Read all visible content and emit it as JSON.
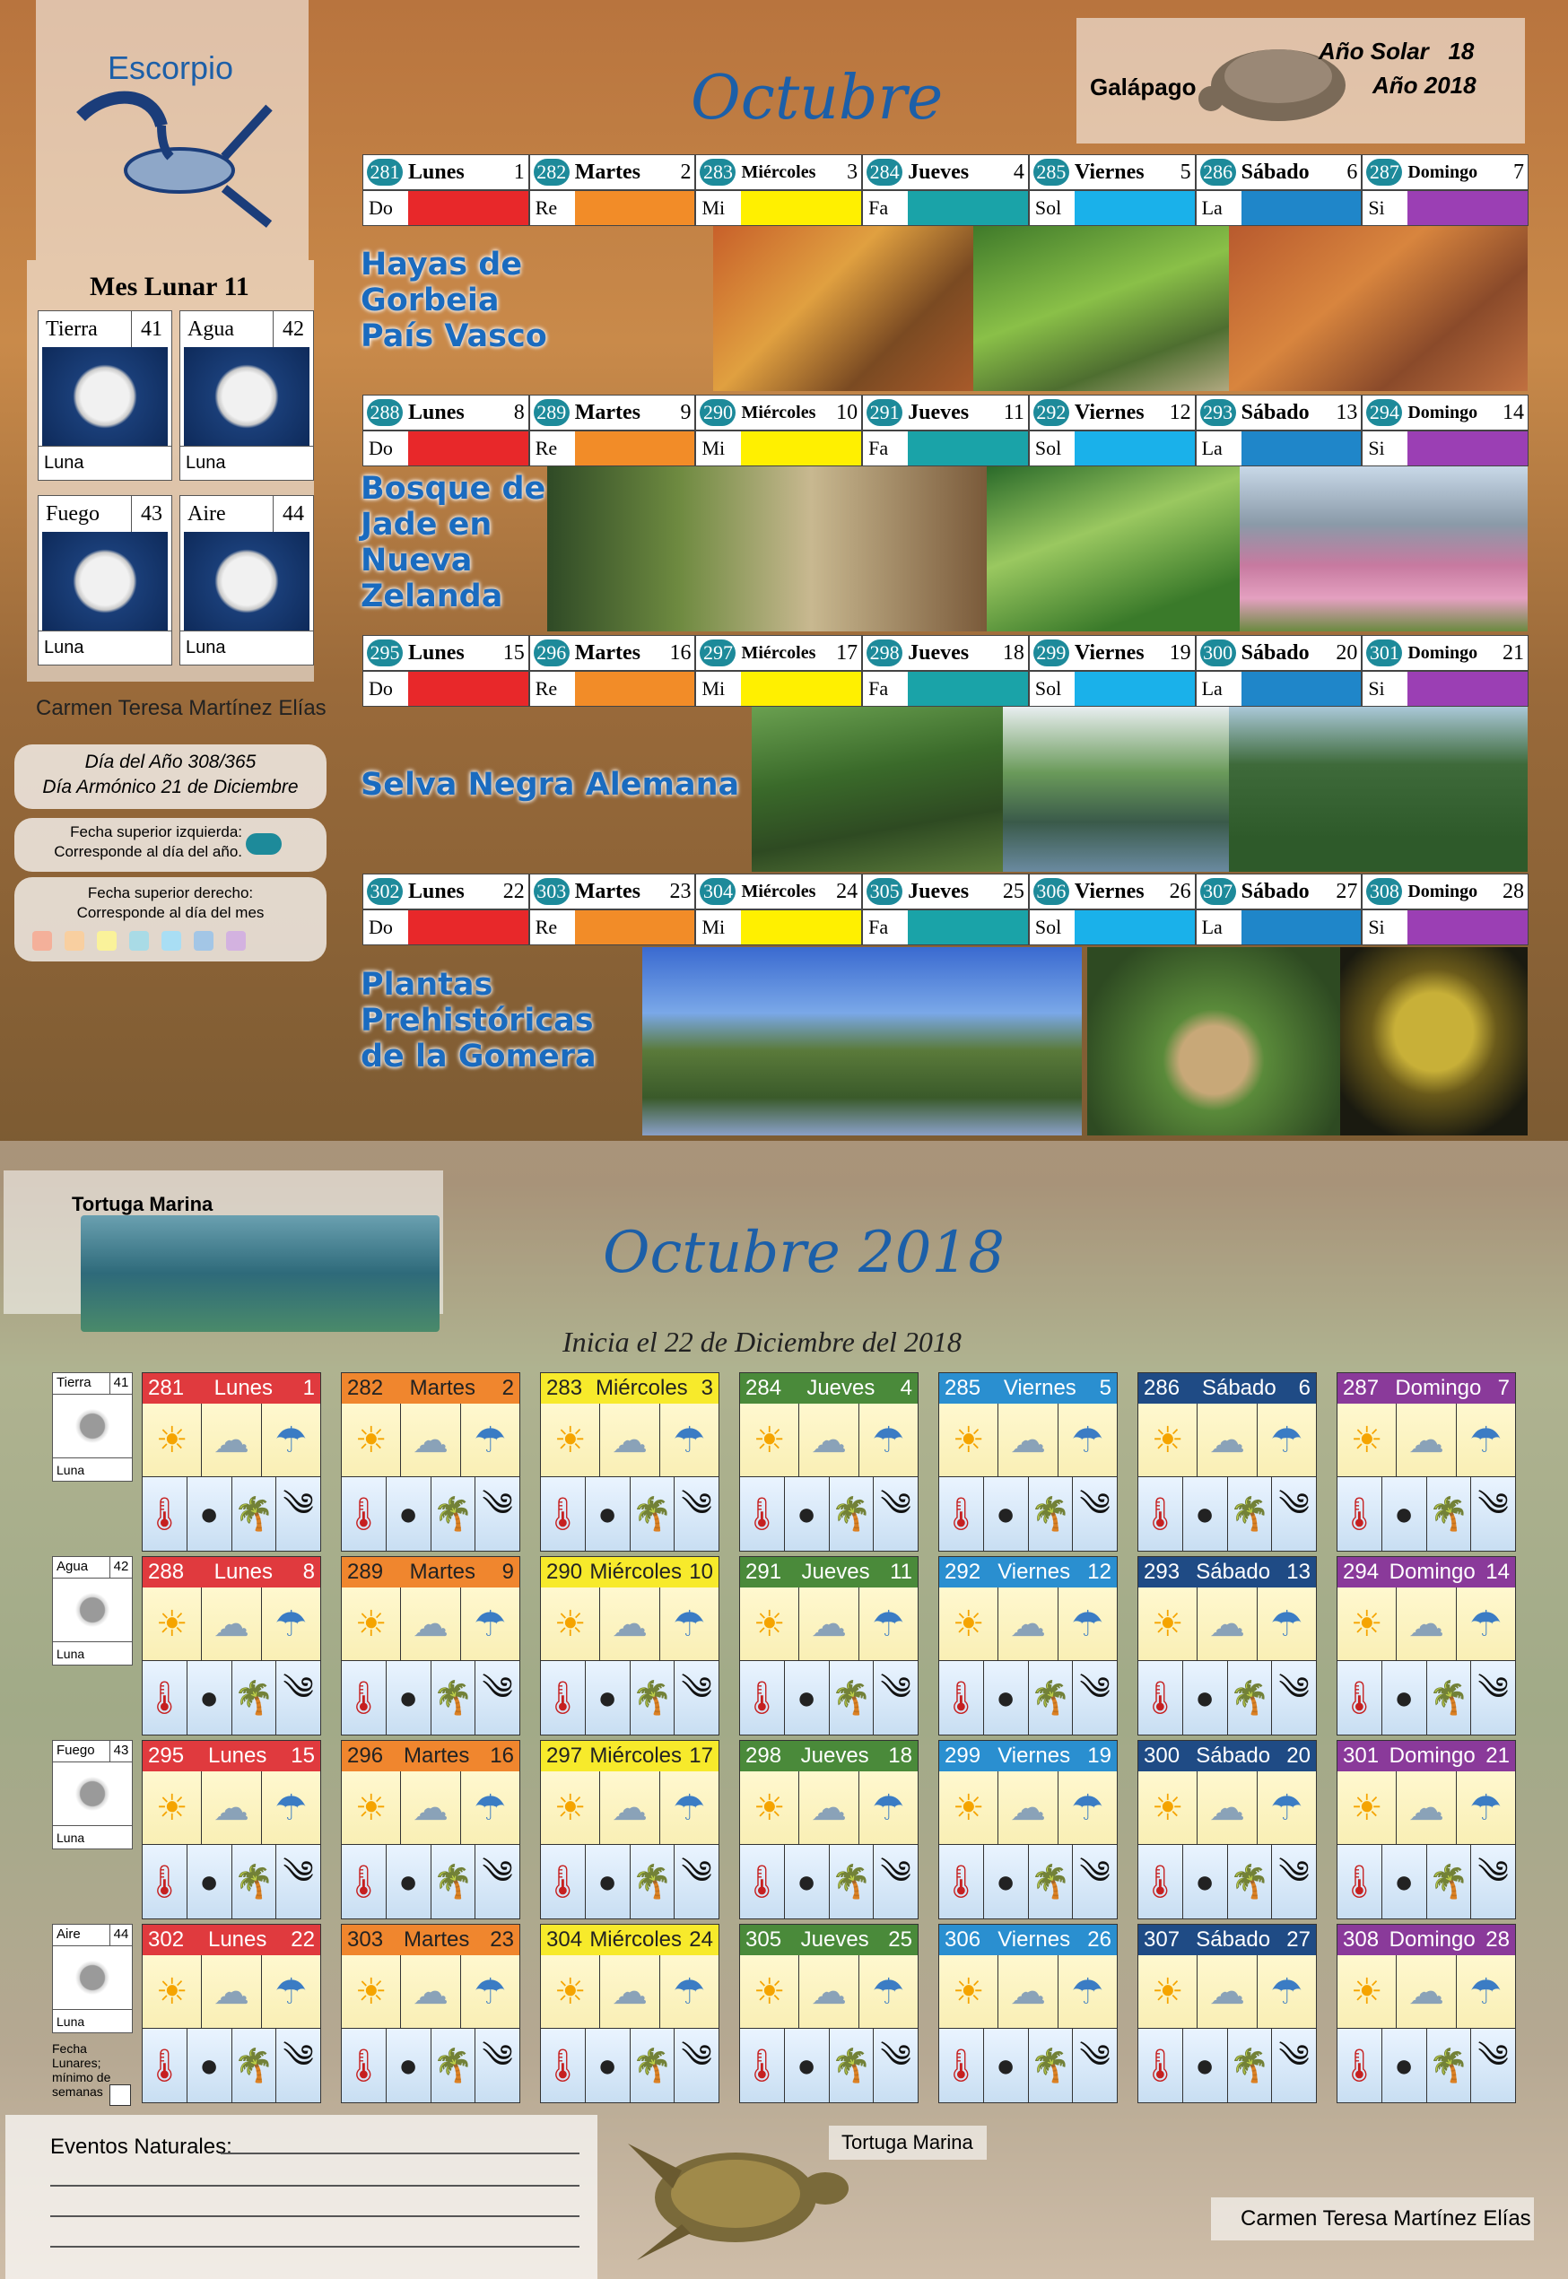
{
  "top": {
    "sign": "Escorpio",
    "month_title": "Octubre",
    "animal": "Galápago",
    "solar_year": "Año Solar   18",
    "year": "Año 2018",
    "lunar_month": "Mes Lunar 11",
    "moons": [
      {
        "label": "Tierra",
        "num": "41",
        "caption": "Luna"
      },
      {
        "label": "Agua",
        "num": "42",
        "caption": "Luna"
      },
      {
        "label": "Fuego",
        "num": "43",
        "caption": "Luna"
      },
      {
        "label": "Aire",
        "num": "44",
        "caption": "Luna"
      }
    ],
    "author": "Carmen Teresa Martínez Elías",
    "day_of_year": "Día del Año 308/365",
    "harmonic_day": "Día Armónico 21 de Diciembre",
    "legend_left_1": "Fecha superior izquierda:",
    "legend_left_2": "Corresponde al día del año.",
    "legend_right_1": "Fecha superior derecho:",
    "legend_right_2": "Corresponde al día del mes",
    "color_labels": [
      "Do",
      "Re",
      "Mi",
      "Fa",
      "Sol",
      "La",
      "Si"
    ],
    "colors": [
      "#e8282a",
      "#f28c28",
      "#fff000",
      "#1aa3a8",
      "#1ab1ea",
      "#1f86c9",
      "#9b3fb4"
    ],
    "weeks": [
      {
        "title": "Hayas de Gorbeia País Vasco",
        "days": [
          [
            "281",
            "Lunes",
            "1"
          ],
          [
            "282",
            "Martes",
            "2"
          ],
          [
            "283",
            "Miércoles",
            "3"
          ],
          [
            "284",
            "Jueves",
            "4"
          ],
          [
            "285",
            "Viernes",
            "5"
          ],
          [
            "286",
            "Sábado",
            "6"
          ],
          [
            "287",
            "Domingo",
            "7"
          ]
        ]
      },
      {
        "title": "Bosque de Jade en Nueva Zelanda",
        "days": [
          [
            "288",
            "Lunes",
            "8"
          ],
          [
            "289",
            "Martes",
            "9"
          ],
          [
            "290",
            "Miércoles",
            "10"
          ],
          [
            "291",
            "Jueves",
            "11"
          ],
          [
            "292",
            "Viernes",
            "12"
          ],
          [
            "293",
            "Sábado",
            "13"
          ],
          [
            "294",
            "Domingo",
            "14"
          ]
        ]
      },
      {
        "title": "Selva Negra Alemana",
        "days": [
          [
            "295",
            "Lunes",
            "15"
          ],
          [
            "296",
            "Martes",
            "16"
          ],
          [
            "297",
            "Miércoles",
            "17"
          ],
          [
            "298",
            "Jueves",
            "18"
          ],
          [
            "299",
            "Viernes",
            "19"
          ],
          [
            "300",
            "Sábado",
            "20"
          ],
          [
            "301",
            "Domingo",
            "21"
          ]
        ]
      },
      {
        "title": "Plantas Prehistóricas de la Gomera",
        "days": [
          [
            "302",
            "Lunes",
            "22"
          ],
          [
            "303",
            "Martes",
            "23"
          ],
          [
            "304",
            "Miércoles",
            "24"
          ],
          [
            "305",
            "Jueves",
            "25"
          ],
          [
            "306",
            "Viernes",
            "26"
          ],
          [
            "307",
            "Sábado",
            "27"
          ],
          [
            "308",
            "Domingo",
            "28"
          ]
        ]
      }
    ]
  },
  "bottom": {
    "animal": "Tortuga Marina",
    "title": "Octubre 2018",
    "subtitle": "Inicia el 22 de Diciembre del 2018",
    "side": [
      {
        "label": "Tierra",
        "num": "41",
        "caption": "Luna"
      },
      {
        "label": "Agua",
        "num": "42",
        "caption": "Luna"
      },
      {
        "label": "Fuego",
        "num": "43",
        "caption": "Luna"
      },
      {
        "label": "Aire",
        "num": "44",
        "caption": "Luna"
      }
    ],
    "lunar_note": "Fecha Lunares; mínimo de semanas",
    "header_colors": [
      "#e03a3e",
      "#f0862e",
      "#f7ea2b",
      "#4a8a3a",
      "#2a8fd0",
      "#1f4b85",
      "#8a3a9a"
    ],
    "header_text_colors": [
      "#ffffff",
      "#222222",
      "#222222",
      "#ffffff",
      "#ffffff",
      "#ffffff",
      "#ffffff"
    ],
    "events_label": "Eventos Naturales:",
    "footer_animal": "Tortuga Marina",
    "footer_author": "Carmen Teresa Martínez Elías"
  },
  "icons": {
    "weather": [
      "sun-icon",
      "cloud-icon",
      "rain-icon"
    ],
    "conditions": [
      "thermometer-sun-icon",
      "moon-icon",
      "palm-icon",
      "wind-icon"
    ]
  }
}
